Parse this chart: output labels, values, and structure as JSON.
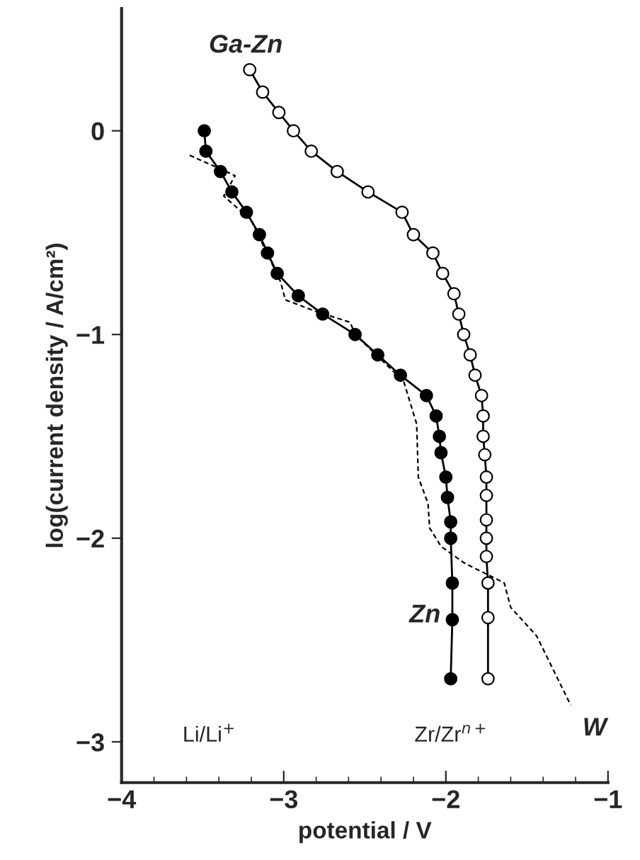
{
  "chart_data": {
    "type": "line",
    "xlabel": "potential / V",
    "ylabel": "log(current density / A/cm²)",
    "xlim": [
      -4,
      -1
    ],
    "ylim": [
      -3.2,
      0.6
    ],
    "xticks": [
      -4,
      -3,
      -2,
      -1
    ],
    "yticks": [
      -3,
      -2,
      -1,
      0
    ],
    "grid": false,
    "legend": false,
    "annotations": [
      "Li/Li$^{+}$",
      "Zr/Zr$^{n+}$"
    ],
    "series": [
      {
        "name": "Ga-Zn",
        "color": "#ffffff",
        "marker": "circle",
        "line_style": "solid",
        "x": [
          -3.21,
          -3.13,
          -3.03,
          -2.94,
          -2.83,
          -2.67,
          -2.48,
          -2.27,
          -2.2,
          -2.08,
          -2.02,
          -1.95,
          -1.92,
          -1.89,
          -1.85,
          -1.82,
          -1.78,
          -1.77,
          -1.77,
          -1.76,
          -1.75,
          -1.75,
          -1.75,
          -1.75,
          -1.75,
          -1.74,
          -1.74,
          -1.74
        ],
        "values": [
          0.3,
          0.19,
          0.09,
          0.0,
          -0.1,
          -0.2,
          -0.3,
          -0.4,
          -0.51,
          -0.6,
          -0.7,
          -0.8,
          -0.9,
          -1.0,
          -1.1,
          -1.2,
          -1.3,
          -1.4,
          -1.5,
          -1.59,
          -1.7,
          -1.79,
          -1.91,
          -2.0,
          -2.09,
          -2.22,
          -2.39,
          -2.69
        ]
      },
      {
        "name": "Zn",
        "color": "#000000",
        "marker": "circle",
        "line_style": "solid",
        "x": [
          -3.49,
          -3.48,
          -3.39,
          -3.32,
          -3.23,
          -3.15,
          -3.1,
          -3.04,
          -2.91,
          -2.76,
          -2.56,
          -2.42,
          -2.28,
          -2.12,
          -2.06,
          -2.04,
          -2.03,
          -2.0,
          -1.99,
          -1.97,
          -1.97,
          -1.96,
          -1.96,
          -1.97
        ],
        "values": [
          0.0,
          -0.1,
          -0.2,
          -0.3,
          -0.4,
          -0.51,
          -0.6,
          -0.7,
          -0.81,
          -0.9,
          -1.0,
          -1.1,
          -1.2,
          -1.3,
          -1.4,
          -1.5,
          -1.58,
          -1.7,
          -1.8,
          -1.92,
          -2.0,
          -2.22,
          -2.4,
          -2.69
        ]
      },
      {
        "name": "W",
        "color": "#000000",
        "marker": "none",
        "line_style": "dashed",
        "x": [
          -3.58,
          -3.3,
          -3.37,
          -3.2,
          -3.02,
          -2.99,
          -2.79,
          -2.59,
          -2.56,
          -2.26,
          -2.18,
          -2.17,
          -2.11,
          -2.1,
          -2.03,
          -1.89,
          -1.64,
          -1.6,
          -1.44,
          -1.23
        ],
        "values": [
          -0.12,
          -0.22,
          -0.32,
          -0.44,
          -0.74,
          -0.83,
          -0.89,
          -0.94,
          -1.0,
          -1.23,
          -1.44,
          -1.7,
          -1.83,
          -1.95,
          -2.04,
          -2.12,
          -2.22,
          -2.34,
          -2.48,
          -2.82
        ]
      }
    ]
  }
}
